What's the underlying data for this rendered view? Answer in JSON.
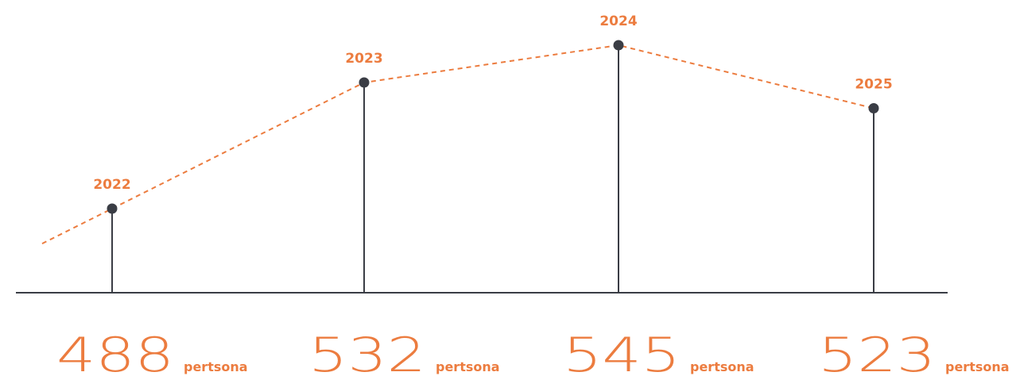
{
  "colors": {
    "accent": "#ec7c3f",
    "stem": "#3a3d45",
    "axis": "#3a3d45"
  },
  "chart_data": {
    "type": "line",
    "categories": [
      "2022",
      "2023",
      "2024",
      "2025"
    ],
    "values": [
      488,
      532,
      545,
      523
    ],
    "unit": "pertsona",
    "line_style": "dashed",
    "grid": false
  }
}
